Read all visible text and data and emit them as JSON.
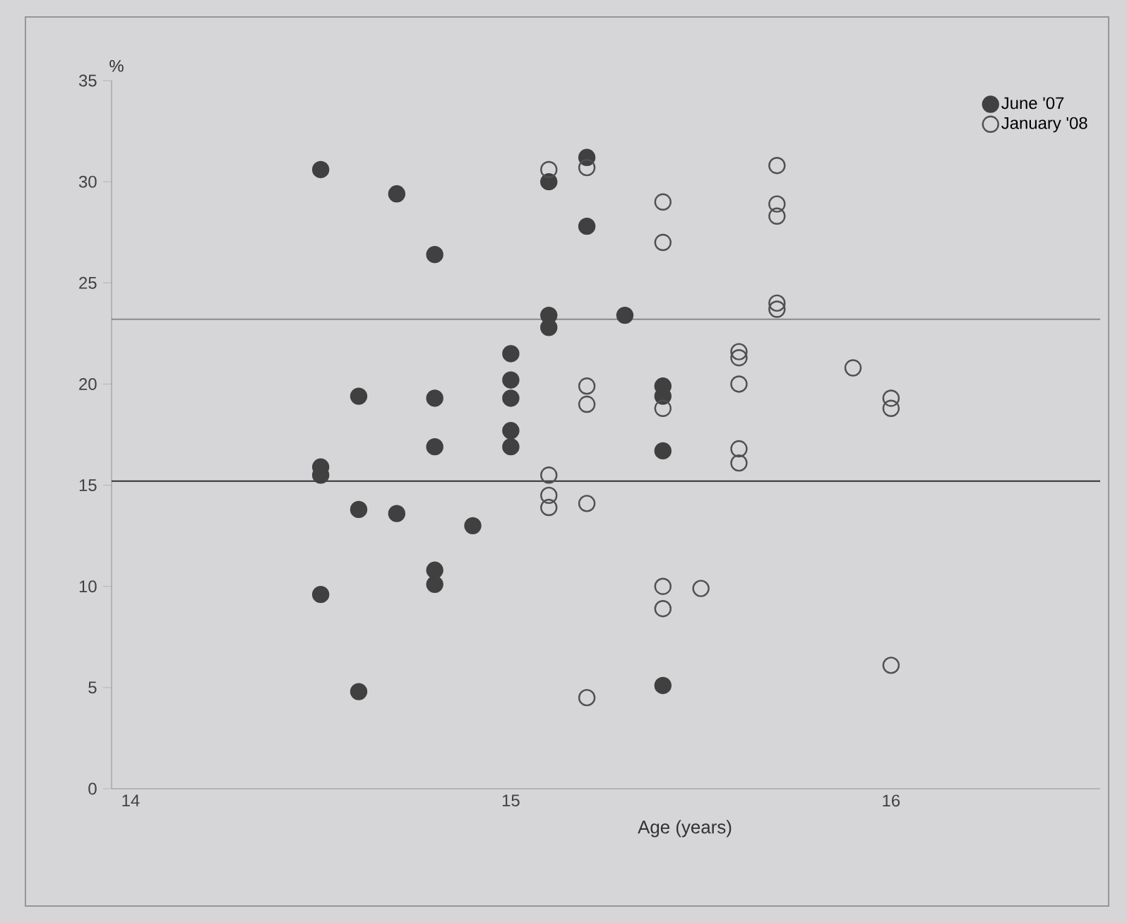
{
  "chart_data": {
    "type": "scatter",
    "xlabel": "Age (years)",
    "ylabel": "%",
    "xlim": [
      13.95,
      16.55
    ],
    "xticks": [
      14,
      15,
      16
    ],
    "ylim": [
      0,
      35
    ],
    "yticks": [
      0,
      5,
      10,
      15,
      20,
      25,
      30,
      35
    ],
    "legend": "top right",
    "marker": "circle",
    "grid": false,
    "ref_lines": [
      {
        "axis": "y",
        "value": 15.2,
        "color": "#303030"
      },
      {
        "axis": "y",
        "value": 23.2,
        "color": "#8a8a8a"
      }
    ],
    "series": [
      {
        "name": "June '07",
        "color": "#404040",
        "x": [
          14.5,
          14.5,
          14.5,
          14.5,
          14.6,
          14.6,
          14.6,
          14.7,
          14.7,
          14.8,
          14.8,
          14.8,
          14.8,
          14.8,
          14.9,
          15.0,
          15.0,
          15.0,
          15.0,
          15.0,
          15.1,
          15.1,
          15.1,
          15.2,
          15.2,
          15.3,
          15.4,
          15.4,
          15.4,
          15.4
        ],
        "values": [
          30.6,
          15.9,
          15.5,
          9.6,
          19.4,
          13.8,
          4.8,
          29.4,
          13.6,
          26.4,
          19.3,
          16.9,
          10.8,
          10.1,
          13.0,
          21.5,
          20.2,
          19.3,
          17.7,
          16.9,
          30.0,
          23.4,
          22.8,
          31.2,
          27.8,
          23.4,
          19.9,
          19.4,
          16.7,
          5.1
        ]
      },
      {
        "name": "January '08",
        "color": "#505050",
        "x": [
          15.1,
          15.1,
          15.1,
          15.1,
          15.2,
          15.2,
          15.2,
          15.2,
          15.2,
          15.4,
          15.4,
          15.4,
          15.4,
          15.4,
          15.5,
          15.6,
          15.6,
          15.6,
          15.6,
          15.6,
          15.7,
          15.7,
          15.7,
          15.7,
          15.7,
          15.9,
          16.0,
          16.0,
          16.0
        ],
        "values": [
          30.6,
          15.5,
          14.5,
          13.9,
          30.7,
          19.9,
          19.0,
          14.1,
          4.5,
          29.0,
          27.0,
          18.8,
          10.0,
          8.9,
          9.9,
          21.6,
          21.3,
          20.0,
          16.8,
          16.1,
          30.8,
          28.9,
          28.3,
          24.0,
          23.7,
          20.8,
          19.3,
          18.8,
          6.1
        ]
      }
    ]
  }
}
